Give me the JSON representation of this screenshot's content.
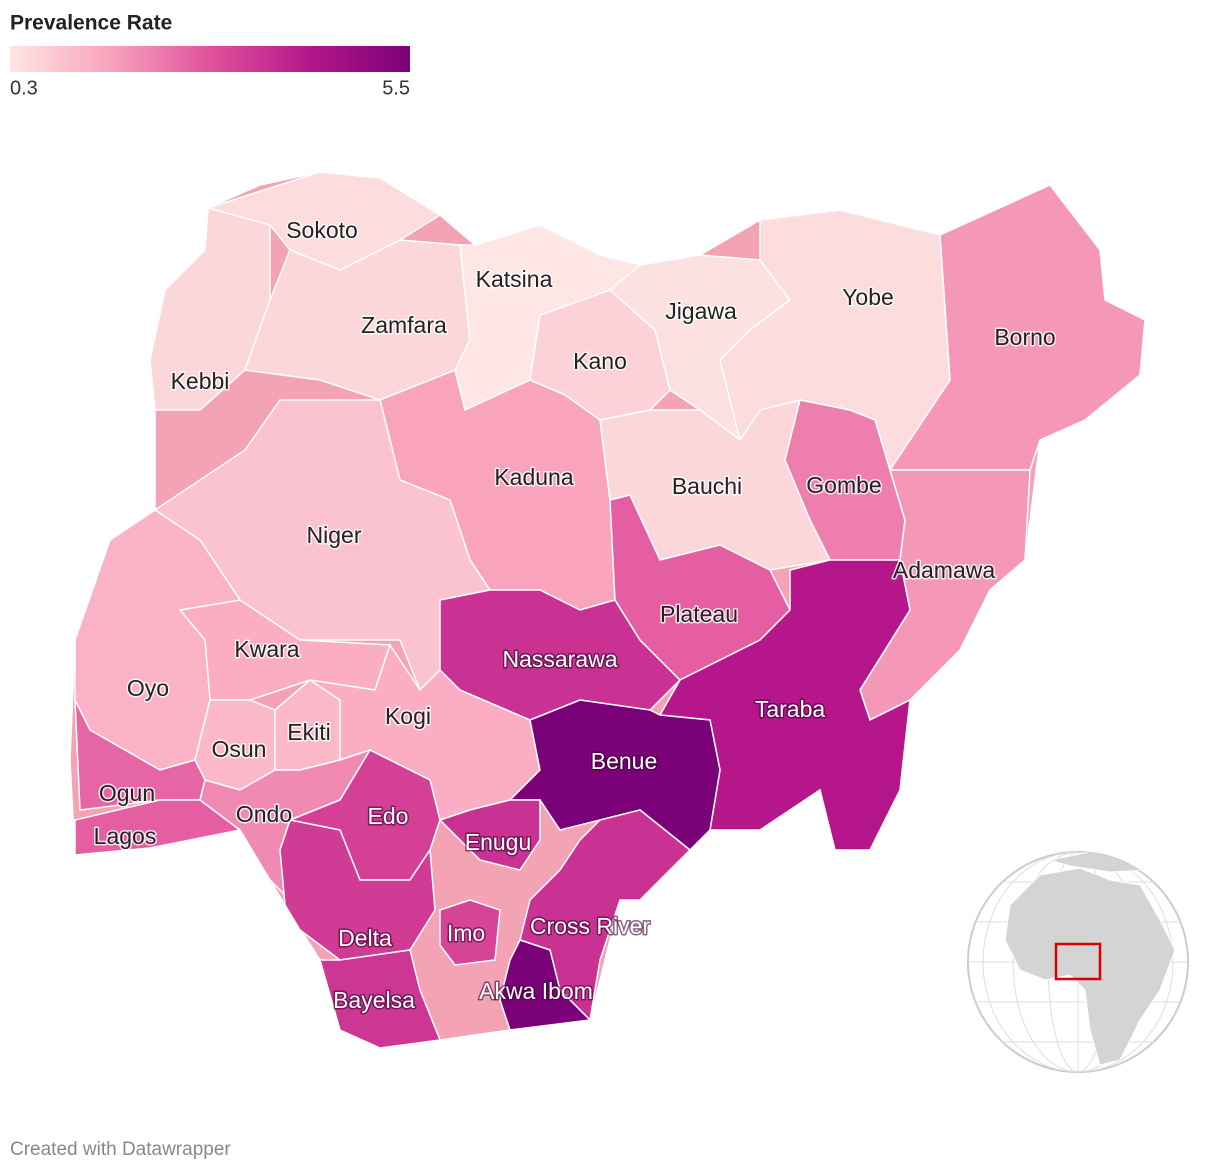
{
  "map": {
    "legend": {
      "title": "Prevalence Rate",
      "min": 0.3,
      "max": 5.5,
      "colors": [
        "#fde6e3",
        "#f9a3bd",
        "#e0529c",
        "#b5178a",
        "#7a0177"
      ]
    },
    "states": [
      {
        "name": "Sokoto",
        "value": 0.5
      },
      {
        "name": "Kebbi",
        "value": 0.6
      },
      {
        "name": "Zamfara",
        "value": 0.6
      },
      {
        "name": "Katsina",
        "value": 0.3
      },
      {
        "name": "Kano",
        "value": 0.7
      },
      {
        "name": "Jigawa",
        "value": 0.4
      },
      {
        "name": "Yobe",
        "value": 0.5
      },
      {
        "name": "Borno",
        "value": 1.8
      },
      {
        "name": "Kaduna",
        "value": 1.6
      },
      {
        "name": "Bauchi",
        "value": 0.6
      },
      {
        "name": "Gombe",
        "value": 2.2
      },
      {
        "name": "Adamawa",
        "value": 1.8
      },
      {
        "name": "Niger",
        "value": 1.0
      },
      {
        "name": "Kwara",
        "value": 1.4
      },
      {
        "name": "Oyo",
        "value": 1.3
      },
      {
        "name": "Osun",
        "value": 1.2
      },
      {
        "name": "Ekiti",
        "value": 1.2
      },
      {
        "name": "Kogi",
        "value": 1.4
      },
      {
        "name": "Ogun",
        "value": 2.6
      },
      {
        "name": "Lagos",
        "value": 2.7
      },
      {
        "name": "Ondo",
        "value": 2.0
      },
      {
        "name": "Edo",
        "value": 3.3
      },
      {
        "name": "Delta",
        "value": 3.4
      },
      {
        "name": "Bayelsa",
        "value": 3.5
      },
      {
        "name": "Nassarawa",
        "value": 3.6
      },
      {
        "name": "Plateau",
        "value": 2.7
      },
      {
        "name": "Taraba",
        "value": 4.2
      },
      {
        "name": "Benue",
        "value": 5.5
      },
      {
        "name": "Enugu",
        "value": 3.6
      },
      {
        "name": "Imo",
        "value": 3.2
      },
      {
        "name": "Cross River",
        "value": 3.6
      },
      {
        "name": "Akwa Ibom",
        "value": 5.5
      }
    ],
    "footer": "Created with Datawrapper"
  }
}
